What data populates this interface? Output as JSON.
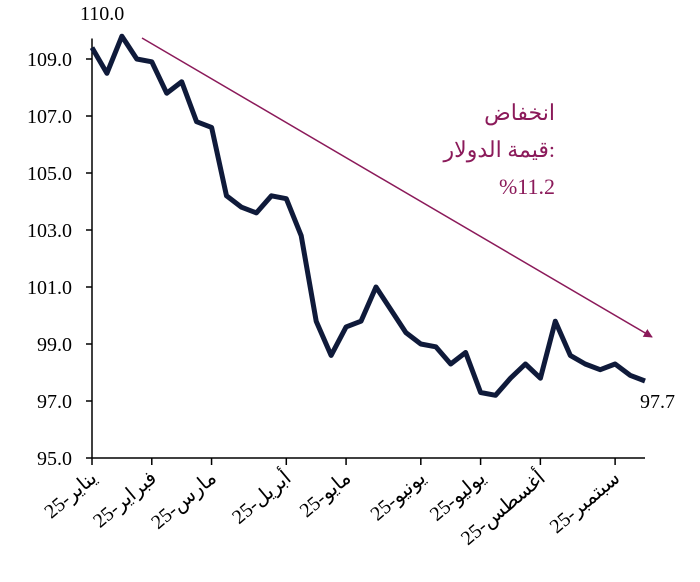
{
  "chart_data": {
    "type": "line",
    "categories": [
      "يناير-25",
      null,
      null,
      null,
      "فبراير-25",
      null,
      null,
      null,
      "مارس-25",
      null,
      null,
      null,
      null,
      "أبريل-25",
      null,
      null,
      null,
      "مايو-25",
      null,
      null,
      null,
      null,
      "يونيو-25",
      null,
      null,
      null,
      "يوليو-25",
      null,
      null,
      null,
      "أغسطس-25",
      null,
      null,
      null,
      null,
      "سبتمبر-25",
      null,
      null
    ],
    "series": [
      {
        "color": "#0f1a3a",
        "values": [
          109.4,
          108.5,
          109.8,
          109.0,
          108.9,
          107.8,
          108.2,
          106.8,
          106.6,
          104.2,
          103.8,
          103.6,
          104.2,
          104.1,
          102.8,
          99.8,
          98.6,
          99.6,
          99.8,
          101.0,
          100.2,
          99.4,
          99.0,
          98.9,
          98.3,
          98.7,
          97.3,
          97.2,
          97.8,
          98.3,
          97.8,
          99.8,
          98.6,
          98.3,
          98.1,
          98.3,
          97.9,
          97.7
        ]
      }
    ],
    "ylim": [
      95,
      110
    ],
    "yticks": [
      {
        "value": 95,
        "label": "95.0"
      },
      {
        "value": 97,
        "label": "97.0"
      },
      {
        "value": 99,
        "label": "99.0"
      },
      {
        "value": 101,
        "label": "101.0"
      },
      {
        "value": 103,
        "label": "103.0"
      },
      {
        "value": 105,
        "label": "105.0"
      },
      {
        "value": 107,
        "label": "107.0"
      },
      {
        "value": 109,
        "label": "109.0"
      }
    ],
    "annotations": {
      "start": "110.0",
      "end": "97.7",
      "text": [
        "انخفاض",
        "قيمة الدولار:",
        "%11.2"
      ]
    }
  }
}
